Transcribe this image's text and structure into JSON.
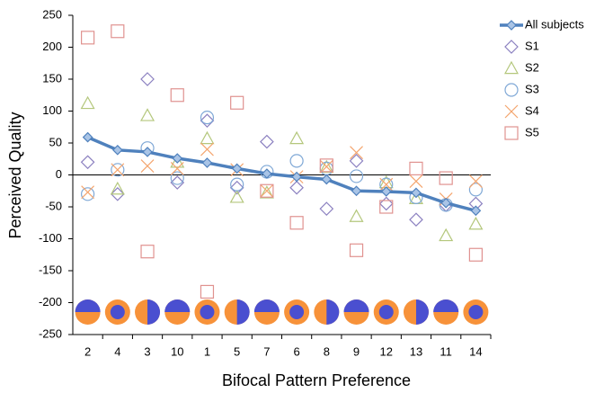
{
  "chart_data": {
    "type": "line",
    "xlabel": "Bifocal Pattern Preference",
    "ylabel": "Perceived Quality",
    "categories": [
      "2",
      "4",
      "3",
      "10",
      "1",
      "5",
      "7",
      "6",
      "8",
      "9",
      "12",
      "13",
      "11",
      "14"
    ],
    "ylim": [
      -250,
      250
    ],
    "yticks": [
      -250,
      -200,
      -150,
      -100,
      -50,
      0,
      50,
      100,
      150,
      200,
      250
    ],
    "grid": false,
    "legend": "right",
    "series": [
      {
        "name": "All subjects",
        "color": "#4f81bd",
        "marker": "diamond",
        "line": true,
        "values": [
          59,
          39,
          36,
          26,
          19,
          10,
          2,
          -3,
          -7,
          -25,
          -26,
          -28,
          -44,
          -56
        ]
      },
      {
        "name": "S1",
        "color": "#8b80c0",
        "marker": "diamond",
        "line": false,
        "values": [
          20,
          -30,
          150,
          -12,
          85,
          -20,
          52,
          -20,
          -53,
          22,
          -45,
          -70,
          -47,
          -45
        ]
      },
      {
        "name": "S2",
        "color": "#b4c77c",
        "marker": "triangle",
        "line": false,
        "values": [
          112,
          -22,
          93,
          20,
          57,
          -35,
          -28,
          57,
          12,
          -65,
          -12,
          -37,
          -95,
          -77
        ]
      },
      {
        "name": "S3",
        "color": "#7fa8d6",
        "marker": "circle",
        "line": false,
        "values": [
          -30,
          8,
          42,
          -5,
          90,
          -15,
          5,
          22,
          10,
          -2,
          -15,
          -35,
          -47,
          -23
        ]
      },
      {
        "name": "S4",
        "color": "#f4a56e",
        "marker": "x",
        "line": false,
        "values": [
          -27,
          8,
          14,
          10,
          40,
          8,
          -25,
          -3,
          13,
          35,
          -15,
          -10,
          -38,
          -10
        ]
      },
      {
        "name": "S5",
        "color": "#e0928f",
        "marker": "square",
        "line": false,
        "values": [
          215,
          225,
          -120,
          125,
          -183,
          113,
          -25,
          -75,
          15,
          -118,
          -50,
          10,
          -5,
          -125
        ]
      }
    ]
  }
}
